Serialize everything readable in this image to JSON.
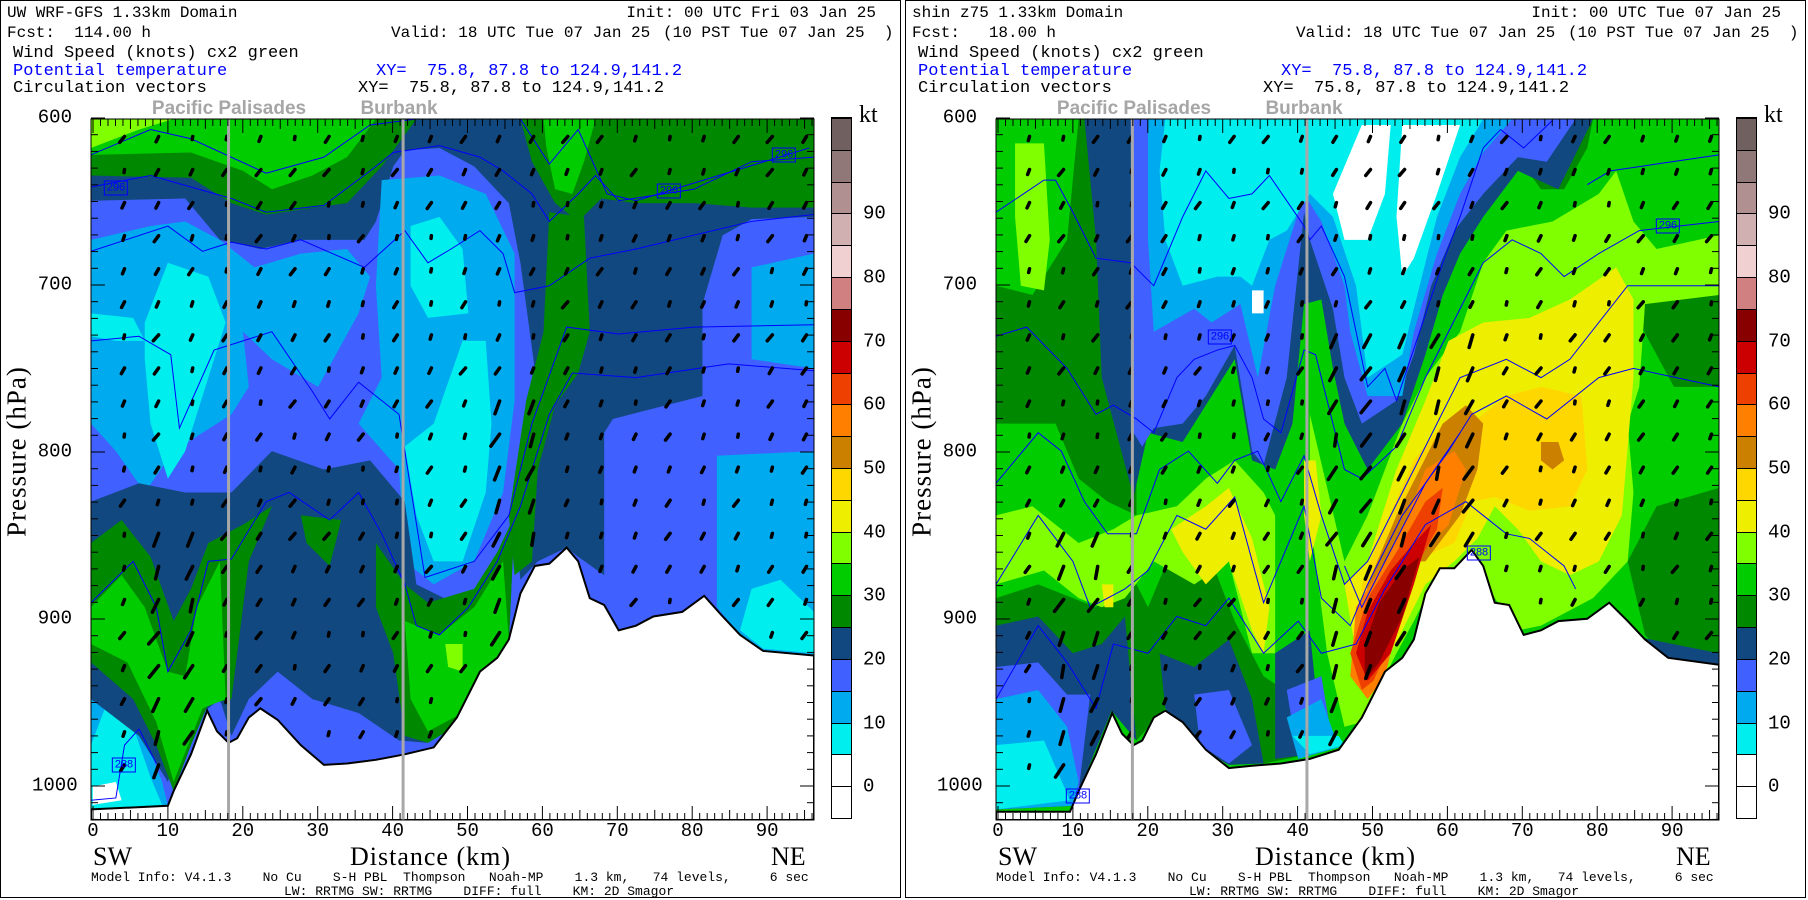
{
  "panels": [
    {
      "title": "UW WRF-GFS 1.33km Domain",
      "init": "Init: 00 UTC Fri 03 Jan 25",
      "fcst": "Fcst:  114.00 h",
      "valid": "Valid: 18 UTC Tue 07 Jan 25",
      "valid_local": "(10 PST Tue 07 Jan 25  )",
      "field1": "Wind Speed (knots) cx2 green",
      "field2": "Potential temperature",
      "field2_xy": "XY=  75.8, 87.8 to 124.9,141.2",
      "field3": "Circulation vectors",
      "field3_xy": "XY=  75.8, 87.8 to 124.9,141.2",
      "contour_labels": [
        "296",
        "296",
        "296",
        "288"
      ]
    },
    {
      "title": "shin z75 1.33km Domain",
      "init": "Init: 00 UTC Tue 07 Jan 25",
      "fcst": "Fcst:   18.00 h",
      "valid": "Valid: 18 UTC Tue 07 Jan 25",
      "valid_local": "(10 PST Tue 07 Jan 25  )",
      "field1": "Wind Speed (knots) cx2 green",
      "field2": "Potential temperature",
      "field2_xy": "XY=  75.8, 87.8 to 124.9,141.2",
      "field3": "Circulation vectors",
      "field3_xy": "XY=  75.8, 87.8 to 124.9,141.2",
      "contour_labels": [
        "296",
        "296",
        "288",
        "288"
      ]
    }
  ],
  "locations": [
    "Pacific Palisades",
    "Burbank"
  ],
  "axes": {
    "y_title": "Pressure (hPa)",
    "y_ticks": [
      "600",
      "700",
      "800",
      "900",
      "1000"
    ],
    "x_title": "Distance (km)",
    "x_ticks": [
      "0",
      "10",
      "20",
      "30",
      "40",
      "50",
      "60",
      "70",
      "80",
      "90"
    ],
    "left_dir": "SW",
    "right_dir": "NE"
  },
  "colorbar": {
    "unit": "kt",
    "labels": [
      "0",
      "10",
      "20",
      "30",
      "40",
      "50",
      "60",
      "70",
      "80",
      "90"
    ],
    "colors": [
      "#ffffff",
      "#ffffff",
      "#00eeee",
      "#00aaee",
      "#4060ff",
      "#124880",
      "#008800",
      "#00cc00",
      "#80ff00",
      "#eeee00",
      "#ffd700",
      "#cc8000",
      "#ff8000",
      "#ee4000",
      "#cc0000",
      "#880000",
      "#d08080",
      "#f0d0d0",
      "#d0b0b0",
      "#b09090",
      "#907878",
      "#706060"
    ]
  },
  "model_info": {
    "line1": "Model Info: V4.1.3    No Cu    S-H PBL  Thompson   Noah-MP    1.3 km,   74 levels,     6 sec",
    "line2": "LW: RRTMG SW: RRTMG    DIFF: full    KM: 2D Smagor"
  },
  "chart_data": [
    {
      "type": "heatmap",
      "title": "UW WRF-GFS 1.33km Domain - Wind Speed (knots) cross section",
      "xlabel": "Distance (km)",
      "ylabel": "Pressure (hPa)",
      "xlim": [
        0,
        96
      ],
      "ylim": [
        1020,
        600
      ],
      "colorbar_range_kt": [
        0,
        95
      ],
      "max_wind_kt_approx": 35,
      "theta_contour_labels_K": [
        296,
        296,
        296,
        288
      ],
      "markers_km": {
        "Pacific Palisades": 18,
        "Burbank": 41
      }
    },
    {
      "type": "heatmap",
      "title": "shin z75 1.33km Domain - Wind Speed (knots) cross section",
      "xlabel": "Distance (km)",
      "ylabel": "Pressure (hPa)",
      "xlim": [
        0,
        96
      ],
      "ylim": [
        1020,
        600
      ],
      "colorbar_range_kt": [
        0,
        95
      ],
      "max_wind_kt_approx": 75,
      "theta_contour_labels_K": [
        296,
        296,
        288,
        288
      ],
      "markers_km": {
        "Pacific Palisades": 18,
        "Burbank": 41
      }
    }
  ]
}
